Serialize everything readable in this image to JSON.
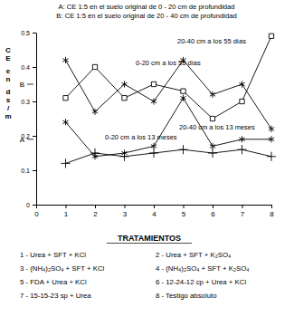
{
  "chart_data": {
    "type": "line",
    "title": "A: CE 1:5 en el suelo original de 0 - 20 cm de profundidad",
    "subtitle": "B: CE 1:5 en el suelo original de 20 - 40 cm de profundidad",
    "y_label": "CE en ds/m",
    "x": [
      1,
      2,
      3,
      4,
      5,
      6,
      7,
      8
    ],
    "xlim": [
      0,
      8
    ],
    "xticks": [
      0,
      1,
      2,
      3,
      4,
      5,
      6,
      7,
      8
    ],
    "ylim": [
      0,
      0.5
    ],
    "yticks": [
      0,
      0.1,
      0.2,
      0.3,
      0.4,
      0.5
    ],
    "grid": false,
    "series": [
      {
        "name": "20-40 cm a los 55 días",
        "color": "#000000",
        "marker": "asterisk",
        "values": [
          0.42,
          0.27,
          0.35,
          0.3,
          0.42,
          0.32,
          0.35,
          0.22
        ]
      },
      {
        "name": "0-20 cm a los 55 días",
        "color": "#000000",
        "marker": "square",
        "values": [
          0.31,
          0.4,
          0.31,
          0.35,
          0.33,
          0.25,
          0.3,
          0.49
        ]
      },
      {
        "name": "20-40 cm a los 13 meses",
        "color": "#000000",
        "marker": "asterisk",
        "values": [
          0.24,
          0.14,
          0.15,
          0.17,
          0.31,
          0.17,
          0.19,
          0.19
        ]
      },
      {
        "name": "0-20 cm a los 13 meses",
        "color": "#000000",
        "marker": "plus",
        "values": [
          0.12,
          0.15,
          0.14,
          0.15,
          0.16,
          0.15,
          0.16,
          0.14
        ]
      }
    ],
    "annotations": [
      {
        "text": "B",
        "y": 0.35
      },
      {
        "text": "A",
        "y": 0.19
      }
    ],
    "treatments": {
      "title": "TRATAMIENTOS",
      "items": [
        "1 - Urea + SFT + KCl",
        "2 - Urea + SFT + K₂SO₄",
        "3 - (NH₄)₂SO₄ + SFT + KCl",
        "4 - (NH₄)₂SO₄ + SFT + K₂SO₄",
        "5 - FDA + Urea + KCl",
        "6 - 12-24-12 cp + Urea + KCl",
        "7 - 15-15-23 sp + Urea",
        "8 - Testigo absoluto"
      ]
    }
  }
}
